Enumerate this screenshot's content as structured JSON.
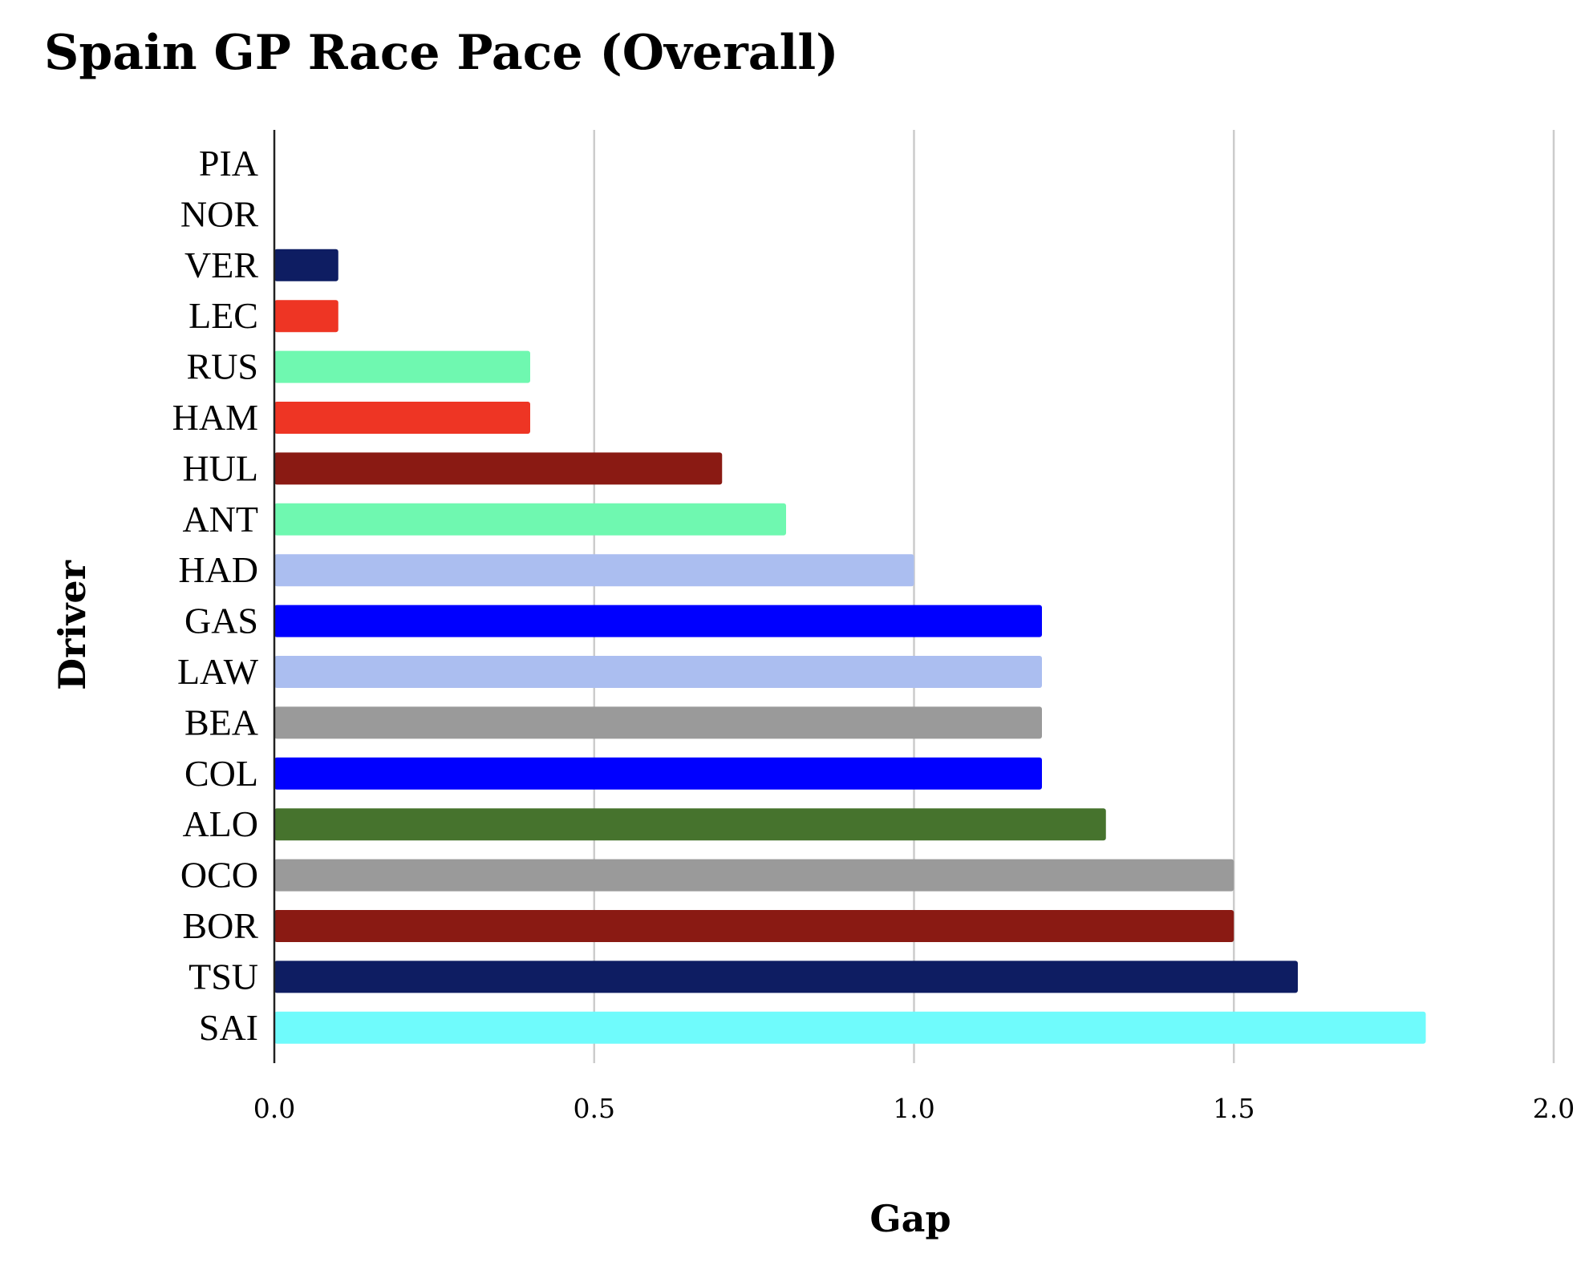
{
  "chart_data": {
    "type": "bar",
    "orientation": "horizontal",
    "title": "Spain GP Race Pace (Overall)",
    "xlabel": "Gap",
    "ylabel": "Driver",
    "xlim": [
      0,
      2.0
    ],
    "xticks": [
      "0.0",
      "0.5",
      "1.0",
      "1.5",
      "2.0"
    ],
    "grid": "vertical",
    "legend": "none",
    "categories": [
      "PIA",
      "NOR",
      "VER",
      "LEC",
      "RUS",
      "HAM",
      "HUL",
      "ANT",
      "HAD",
      "GAS",
      "LAW",
      "BEA",
      "COL",
      "ALO",
      "OCO",
      "BOR",
      "TSU",
      "SAI"
    ],
    "values": [
      0,
      0,
      0.1,
      0.1,
      0.4,
      0.4,
      0.7,
      0.8,
      1.0,
      1.2,
      1.2,
      1.2,
      1.2,
      1.3,
      1.5,
      1.5,
      1.6,
      1.8
    ],
    "colors": [
      "#FF8000",
      "#FF8000",
      "#0E1D62",
      "#EE3524",
      "#6FF8B0",
      "#EE3524",
      "#8A1A13",
      "#6FF8B0",
      "#ABBEF0",
      "#0000FF",
      "#ABBEF0",
      "#9A9A9A",
      "#0000FF",
      "#46732D",
      "#9A9A9A",
      "#8A1A13",
      "#0E1D62",
      "#6FFBFC"
    ]
  }
}
